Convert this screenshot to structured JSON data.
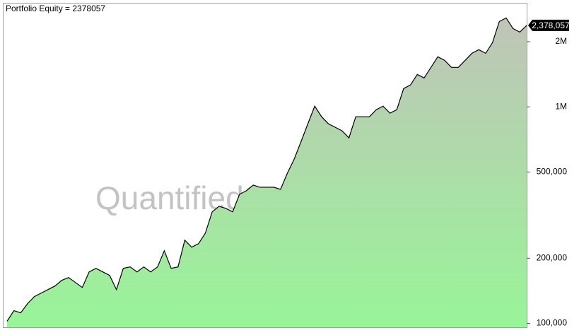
{
  "chart_data": {
    "type": "area",
    "title": "Portfolio Equity = 2378057",
    "watermark": "QuantifiedStrategies.com",
    "log_scale": true,
    "ylim": [
      96000,
      3000000
    ],
    "yticks": [
      {
        "value": 100000,
        "label": "100,000"
      },
      {
        "value": 200000,
        "label": "200,000"
      },
      {
        "value": 500000,
        "label": "500,000"
      },
      {
        "value": 1000000,
        "label": "1M"
      },
      {
        "value": 2000000,
        "label": "2M"
      }
    ],
    "color": "#000000",
    "fill_top": "#c0c4b8",
    "fill_bottom": "#98f598",
    "current_value": {
      "value": 2378057,
      "label": "2,378,057"
    },
    "values": [
      102300,
      114500,
      111900,
      123400,
      133000,
      138100,
      143300,
      148800,
      158000,
      162800,
      154500,
      146600,
      172900,
      179500,
      172900,
      166500,
      143300,
      179500,
      182200,
      172900,
      182200,
      172900,
      182200,
      216500,
      179500,
      182200,
      242300,
      224800,
      233400,
      261200,
      327200,
      347400,
      339700,
      327200,
      394700,
      409800,
      435000,
      425400,
      425400,
      425400,
      415900,
      494100,
      574100,
      692400,
      835400,
      1007600,
      900300,
      835400,
      804500,
      775000,
      719000,
      900300,
      900300,
      900300,
      970500,
      1007600,
      934600,
      970500,
      1215000,
      1262000,
      1412000,
      1360000,
      1522000,
      1703000,
      1641000,
      1522000,
      1522000,
      1641000,
      1768000,
      1836000,
      1768000,
      1979000,
      2479000,
      2573000,
      2299000,
      2214000,
      2378057
    ]
  }
}
